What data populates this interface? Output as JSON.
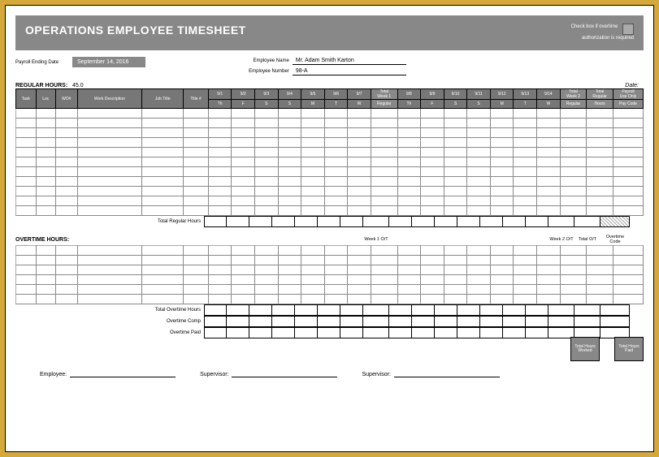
{
  "title": "OPERATIONS EMPLOYEE TIMESHEET",
  "checkbox_label1": "Check box if overtime",
  "checkbox_label2": "authorization is required",
  "payroll_ending_label": "Payroll Ending Date",
  "payroll_ending_date": "September 14, 2016",
  "employee_name_label": "Employee Name",
  "employee_name": "Mr. Adam Smith Karton",
  "employee_number_label": "Employee Number",
  "employee_number": "98-A",
  "regular_hours_label": "REGULAR HOURS:",
  "regular_hours_total": "45.0",
  "date_label": "Date:",
  "left_headers": [
    "Task",
    "Loc",
    "WO#",
    "Work Description",
    "Job Title",
    "Title #"
  ],
  "week1_days": [
    {
      "d": "9/1",
      "w": "Th"
    },
    {
      "d": "9/2",
      "w": "F"
    },
    {
      "d": "9/3",
      "w": "S"
    },
    {
      "d": "9/4",
      "w": "S"
    },
    {
      "d": "9/5",
      "w": "M"
    },
    {
      "d": "9/6",
      "w": "T"
    },
    {
      "d": "9/7",
      "w": "W"
    }
  ],
  "week2_days": [
    {
      "d": "9/8",
      "w": "Th"
    },
    {
      "d": "9/9",
      "w": "F"
    },
    {
      "d": "9/10",
      "w": "S"
    },
    {
      "d": "9/11",
      "w": "S"
    },
    {
      "d": "9/12",
      "w": "M"
    },
    {
      "d": "9/13",
      "w": "T"
    },
    {
      "d": "9/14",
      "w": "W"
    }
  ],
  "total_week1_top": "Total",
  "total_week1_mid": "Week 1",
  "total_week1_bot": "Regular",
  "total_week2_top": "Total",
  "total_week2_mid": "Week 2",
  "total_week2_bot": "Regular",
  "total_reg_top": "Total",
  "total_reg_mid": "Regular",
  "total_reg_bot": "Hours",
  "payroll_top": "Payroll",
  "payroll_mid": "Use Only",
  "payroll_bot": "Pay Code",
  "total_regular_hours_label": "Total Regular Hours",
  "overtime_label": "OVERTIME HOURS:",
  "week1_ot": "Week 1 O/T",
  "week2_ot": "Week 2 O/T",
  "total_ot": "Total O/T",
  "overtime_code": "Overtime Code",
  "total_overtime_hours": "Total Overtime Hours",
  "overtime_comp": "Overtime Comp",
  "overtime_paid": "Overtime Paid",
  "total_hours_worked": "Total Hours Worked",
  "total_hours_paid": "Total Hours Paid",
  "sig_employee": "Employee:",
  "sig_supervisor": "Supervisor:",
  "colors": {
    "page_border": "#d4a939",
    "header_bg": "#888888",
    "col_hdr": "#777777"
  }
}
